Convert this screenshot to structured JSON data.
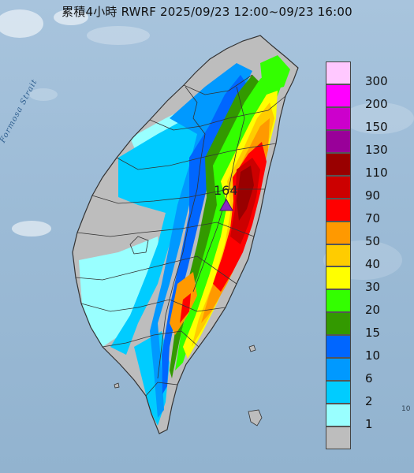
{
  "title": "累積4小時 RWRF 2025/09/23 12:00~09/23 16:00",
  "sea_label": "Formosa Strait",
  "peak": {
    "value": "164",
    "marker": "triangle-marker",
    "color": "#8a2bc4"
  },
  "edge_number": "10",
  "colors": {
    "sea": "#9dbcd7",
    "land_gray": "#bdbdbd",
    "county_border": "#333333"
  },
  "legend": [
    {
      "label": "300",
      "color": "#ffc8ff"
    },
    {
      "label": "200",
      "color": "#ff00ff"
    },
    {
      "label": "150",
      "color": "#cc00cc"
    },
    {
      "label": "130",
      "color": "#990099"
    },
    {
      "label": "110",
      "color": "#990000"
    },
    {
      "label": "90",
      "color": "#cc0000"
    },
    {
      "label": "70",
      "color": "#ff0000"
    },
    {
      "label": "50",
      "color": "#ff9900"
    },
    {
      "label": "40",
      "color": "#ffcc00"
    },
    {
      "label": "30",
      "color": "#ffff00"
    },
    {
      "label": "20",
      "color": "#33ff00"
    },
    {
      "label": "15",
      "color": "#339900"
    },
    {
      "label": "10",
      "color": "#0066ff"
    },
    {
      "label": "6",
      "color": "#0099ff"
    },
    {
      "label": "2",
      "color": "#00ccff"
    },
    {
      "label": "1",
      "color": "#99ffff"
    },
    {
      "label": "",
      "color": "#bdbdbd"
    }
  ]
}
